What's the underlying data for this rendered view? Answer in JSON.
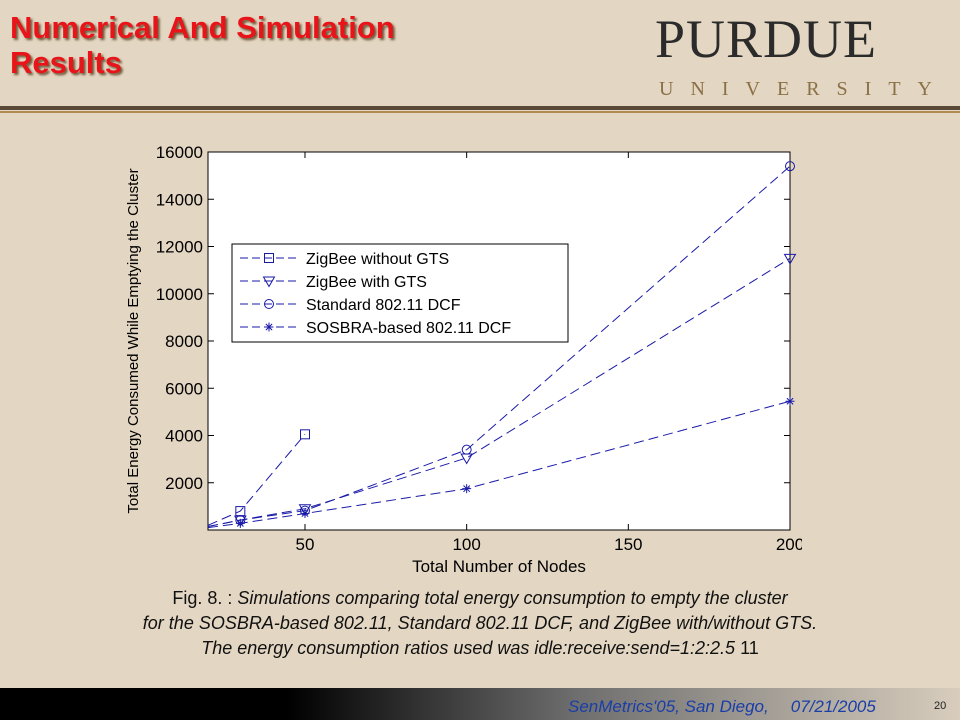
{
  "slide": {
    "title_line1": "Numerical And Simulation",
    "title_line2": "Results",
    "logo_word": "PURDUE",
    "logo_sub": "UNIVERSITY",
    "caption_prefix": "Fig. 8. :",
    "caption_line1": "Simulations comparing total energy consumption to empty the cluster",
    "caption_line2": "for the SOSBRA-based 802.11, Standard 802.11 DCF, and ZigBee with/without GTS.",
    "caption_line3": "The energy consumption ratios used was idle:receive:send=1:2:2.5",
    "caption_ref": "11",
    "footer_event": "SenMetrics'05, San Diego,",
    "footer_date": "07/21/2005",
    "slide_number": "20"
  },
  "chart_data": {
    "type": "line",
    "title": "",
    "xlabel": "Total Number of Nodes",
    "ylabel": "Total Energy Consumed While Emptying the Cluster",
    "xlim": [
      20,
      200
    ],
    "ylim": [
      0,
      16000
    ],
    "xticks": [
      50,
      100,
      150,
      200
    ],
    "yticks": [
      2000,
      4000,
      6000,
      8000,
      10000,
      12000,
      14000,
      16000
    ],
    "grid": false,
    "legend_position": "upper-left",
    "line_color": "#1a1aa8",
    "series": [
      {
        "name": "ZigBee without GTS",
        "marker": "square",
        "x": [
          20,
          30,
          50
        ],
        "y": [
          200,
          800,
          4050
        ]
      },
      {
        "name": "ZigBee with GTS",
        "marker": "triangle-down",
        "x": [
          20,
          30,
          50,
          100,
          200
        ],
        "y": [
          150,
          420,
          900,
          3050,
          11500
        ]
      },
      {
        "name": "Standard 802.11 DCF",
        "marker": "circle",
        "x": [
          20,
          30,
          50,
          100,
          200
        ],
        "y": [
          150,
          420,
          820,
          3400,
          15400
        ]
      },
      {
        "name": "SOSBRA-based 802.11 DCF",
        "marker": "star",
        "x": [
          20,
          30,
          50,
          100,
          200
        ],
        "y": [
          100,
          280,
          700,
          1750,
          5450
        ]
      }
    ]
  }
}
